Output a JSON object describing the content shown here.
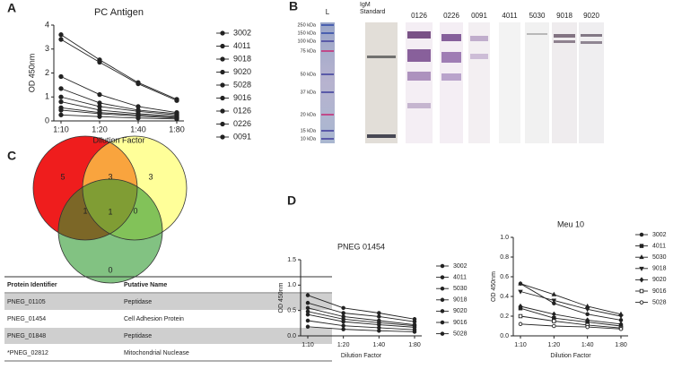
{
  "panels": [
    "A",
    "B",
    "C",
    "D"
  ],
  "chart_data": [
    {
      "type": "line",
      "title": "PC Antigen",
      "x_label": "Dilution Factor",
      "y_label": "OD 450nm",
      "categories": [
        "1:10",
        "1:20",
        "1:40",
        "1:80"
      ],
      "ylim": [
        0,
        4
      ],
      "yticks": [
        0,
        1,
        2,
        3,
        4
      ],
      "grid": false,
      "series": [
        {
          "name": "3002",
          "color": "#222222",
          "marker": "circle",
          "values": [
            3.6,
            2.55,
            1.6,
            0.9
          ]
        },
        {
          "name": "4011",
          "color": "#222222",
          "marker": "circle",
          "values": [
            3.4,
            2.45,
            1.55,
            0.85
          ]
        },
        {
          "name": "9018",
          "color": "#222222",
          "marker": "circle",
          "values": [
            1.85,
            1.1,
            0.6,
            0.35
          ]
        },
        {
          "name": "9020",
          "color": "#222222",
          "marker": "circle",
          "values": [
            1.35,
            0.75,
            0.45,
            0.3
          ]
        },
        {
          "name": "5028",
          "color": "#222222",
          "marker": "circle",
          "values": [
            1.0,
            0.6,
            0.4,
            0.25
          ]
        },
        {
          "name": "9016",
          "color": "#222222",
          "marker": "circle",
          "values": [
            0.8,
            0.45,
            0.3,
            0.2
          ]
        },
        {
          "name": "0126",
          "color": "#222222",
          "marker": "circle",
          "values": [
            0.55,
            0.35,
            0.25,
            0.15
          ]
        },
        {
          "name": "0226",
          "color": "#222222",
          "marker": "circle",
          "values": [
            0.45,
            0.3,
            0.2,
            0.12
          ]
        },
        {
          "name": "0091",
          "color": "#222222",
          "marker": "circle",
          "values": [
            0.25,
            0.18,
            0.12,
            0.08
          ]
        }
      ]
    },
    {
      "type": "line",
      "title": "PNEG 01454",
      "x_label": "Dilution Factor",
      "y_label": "OD 450nm",
      "categories": [
        "1:10",
        "1:20",
        "1:40",
        "1:80"
      ],
      "ylim": [
        0,
        1.5
      ],
      "yticks": [
        {
          "value": 0,
          "label": "0.0"
        },
        0.5,
        {
          "value": 1,
          "label": "1.0"
        },
        1.5
      ],
      "grid": false,
      "series": [
        {
          "name": "3002",
          "color": "#222222",
          "marker": "circle",
          "values": [
            0.8,
            0.55,
            0.45,
            0.33
          ]
        },
        {
          "name": "4011",
          "color": "#222222",
          "marker": "circle",
          "values": [
            0.65,
            0.45,
            0.38,
            0.28
          ]
        },
        {
          "name": "5030",
          "color": "#222222",
          "marker": "circle",
          "values": [
            0.55,
            0.38,
            0.3,
            0.22
          ]
        },
        {
          "name": "9018",
          "color": "#222222",
          "marker": "circle",
          "values": [
            0.48,
            0.33,
            0.26,
            0.2
          ]
        },
        {
          "name": "9020",
          "color": "#222222",
          "marker": "circle",
          "values": [
            0.42,
            0.28,
            0.22,
            0.17
          ]
        },
        {
          "name": "9016",
          "color": "#222222",
          "marker": "circle",
          "values": [
            0.3,
            0.2,
            0.16,
            0.12
          ]
        },
        {
          "name": "5028",
          "color": "#222222",
          "marker": "circle",
          "values": [
            0.18,
            0.13,
            0.1,
            0.08
          ]
        }
      ]
    },
    {
      "type": "line",
      "title": "Meu 10",
      "x_label": "Dilution  Factor",
      "y_label": "OD 450nm",
      "categories": [
        "1:10",
        "1:20",
        "1:40",
        "1:80"
      ],
      "ylim": [
        0,
        1
      ],
      "yticks": [
        {
          "value": 0,
          "label": "0.0"
        },
        0.2,
        0.4,
        0.6,
        0.8,
        {
          "value": 1,
          "label": "1.0"
        }
      ],
      "grid": false,
      "series": [
        {
          "name": "3002",
          "color": "#222222",
          "marker": "circle",
          "values": [
            0.53,
            0.33,
            0.22,
            0.16
          ]
        },
        {
          "name": "4011",
          "color": "#222222",
          "marker": "square",
          "values": [
            0.28,
            0.18,
            0.14,
            0.1
          ]
        },
        {
          "name": "5030",
          "color": "#222222",
          "marker": "triangle-up",
          "values": [
            0.53,
            0.42,
            0.3,
            0.22
          ]
        },
        {
          "name": "9018",
          "color": "#222222",
          "marker": "triangle-down",
          "values": [
            0.45,
            0.36,
            0.27,
            0.2
          ]
        },
        {
          "name": "9020",
          "color": "#222222",
          "marker": "diamond",
          "values": [
            0.3,
            0.22,
            0.16,
            0.12
          ]
        },
        {
          "name": "9016",
          "color": "#222222",
          "marker": "open-square",
          "values": [
            0.2,
            0.15,
            0.11,
            0.08
          ]
        },
        {
          "name": "5028",
          "color": "#222222",
          "marker": "open-circle",
          "values": [
            0.12,
            0.1,
            0.09,
            0.07
          ]
        }
      ]
    }
  ],
  "blot": {
    "lanes": [
      "L",
      "IgM Standard",
      "0126",
      "0226",
      "0091",
      "4011",
      "5030",
      "9018",
      "9020"
    ],
    "markers": [
      "250 kDa",
      "150 kDa",
      "100 kDa",
      "75 kDa",
      "50 kDa",
      "37 kDa",
      "20 kDa",
      "15 kDa",
      "10 kDa"
    ]
  },
  "venn": {
    "regions": [
      5,
      3,
      3,
      1,
      1,
      0,
      0
    ]
  },
  "table": {
    "header": [
      "Protein Identifier",
      "Putative Name"
    ],
    "rows": [
      [
        "PNEG_01105",
        "Peptidase"
      ],
      [
        "PNEG_01454",
        "Cell Adhesion Protein"
      ],
      [
        "PNEG_01848",
        "Peptidase"
      ],
      [
        "*PNEG_02812",
        "Mitochondrial Nuclease"
      ]
    ]
  }
}
